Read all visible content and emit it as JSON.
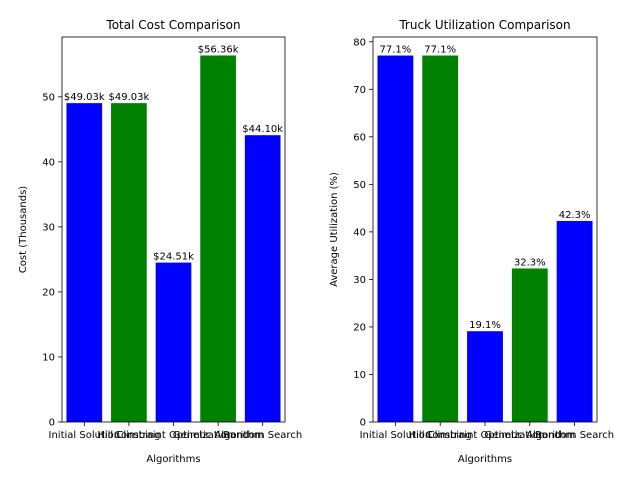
{
  "chart_data": [
    {
      "type": "bar",
      "title": "Total Cost Comparison",
      "xlabel": "Algorithms",
      "ylabel": "Cost (Thousands)",
      "categories": [
        "Initial Solution",
        "Hill Climbing",
        "Constraint Optimization",
        "Genetic Algorithm",
        "Random Search"
      ],
      "values": [
        49.03,
        49.03,
        24.51,
        56.36,
        44.1
      ],
      "data_labels": [
        "$49.03k",
        "$49.03k",
        "$24.51k",
        "$56.36k",
        "$44.10k"
      ],
      "colors": [
        "#0000ff",
        "#008000",
        "#0000ff",
        "#008000",
        "#0000ff"
      ],
      "ylim": [
        0,
        59.2
      ],
      "yticks": [
        0,
        10,
        20,
        30,
        40,
        50
      ],
      "grid": false,
      "legend": "none"
    },
    {
      "type": "bar",
      "title": "Truck Utilization Comparison",
      "xlabel": "Algorithms",
      "ylabel": "Average Utilization (%)",
      "categories": [
        "Initial Solution",
        "Hill Climbing",
        "Constraint Optimization",
        "Genetic Algorithm",
        "Random Search"
      ],
      "values": [
        77.1,
        77.1,
        19.1,
        32.3,
        42.3
      ],
      "data_labels": [
        "77.1%",
        "77.1%",
        "19.1%",
        "32.3%",
        "42.3%"
      ],
      "colors": [
        "#0000ff",
        "#008000",
        "#0000ff",
        "#008000",
        "#0000ff"
      ],
      "ylim": [
        0,
        81
      ],
      "yticks": [
        0,
        10,
        20,
        30,
        40,
        50,
        60,
        70,
        80
      ],
      "grid": false,
      "legend": "none"
    }
  ]
}
